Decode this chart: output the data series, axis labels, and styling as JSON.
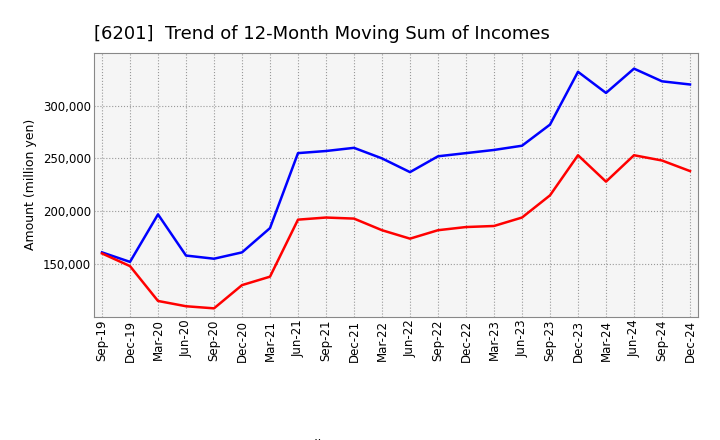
{
  "title": "[6201]  Trend of 12-Month Moving Sum of Incomes",
  "ylabel": "Amount (million yen)",
  "x_labels": [
    "Sep-19",
    "Dec-19",
    "Mar-20",
    "Jun-20",
    "Sep-20",
    "Dec-20",
    "Mar-21",
    "Jun-21",
    "Sep-21",
    "Dec-21",
    "Mar-22",
    "Jun-22",
    "Sep-22",
    "Dec-22",
    "Mar-23",
    "Jun-23",
    "Sep-23",
    "Dec-23",
    "Mar-24",
    "Jun-24",
    "Sep-24",
    "Dec-24"
  ],
  "ordinary_income": [
    161000,
    152000,
    197000,
    158000,
    155000,
    161000,
    184000,
    255000,
    257000,
    260000,
    250000,
    237000,
    252000,
    255000,
    258000,
    262000,
    282000,
    332000,
    312000,
    335000,
    323000,
    320000
  ],
  "net_income": [
    160000,
    148000,
    115000,
    110000,
    108000,
    130000,
    138000,
    192000,
    194000,
    193000,
    182000,
    174000,
    182000,
    185000,
    186000,
    194000,
    215000,
    253000,
    228000,
    253000,
    248000,
    238000
  ],
  "ordinary_color": "#0000ff",
  "net_color": "#ff0000",
  "ylim_min": 100000,
  "ylim_max": 350000,
  "yticks": [
    150000,
    200000,
    250000,
    300000
  ],
  "background_color": "#ffffff",
  "plot_bg_color": "#f5f5f5",
  "grid_color": "#999999",
  "line_width": 1.8,
  "title_fontsize": 13,
  "axis_fontsize": 9,
  "tick_fontsize": 8.5,
  "legend_fontsize": 9
}
